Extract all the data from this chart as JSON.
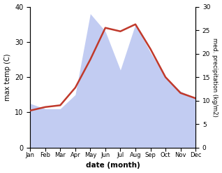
{
  "months": [
    "Jan",
    "Feb",
    "Mar",
    "Apr",
    "May",
    "Jun",
    "Jul",
    "Aug",
    "Sep",
    "Oct",
    "Nov",
    "Dec"
  ],
  "temp": [
    10.5,
    11.5,
    12.0,
    17.0,
    25.0,
    34.0,
    33.0,
    35.0,
    28.0,
    20.0,
    15.5,
    14.0
  ],
  "precip": [
    12.5,
    11.0,
    11.0,
    15.0,
    38.0,
    33.0,
    22.0,
    35.0,
    27.0,
    20.0,
    16.0,
    14.0
  ],
  "temp_color": "#c0392b",
  "precip_fill_color": "#b8c4f0",
  "precip_fill_alpha": 0.85,
  "ylabel_left": "max temp (C)",
  "ylabel_right": "med. precipitation (kg/m2)",
  "xlabel": "date (month)",
  "ylim_left": [
    0,
    40
  ],
  "ylim_right": [
    0,
    30
  ],
  "yticks_left": [
    0,
    10,
    20,
    30,
    40
  ],
  "yticks_right": [
    0,
    5,
    10,
    15,
    20,
    25,
    30
  ],
  "bg_color": "#ffffff"
}
